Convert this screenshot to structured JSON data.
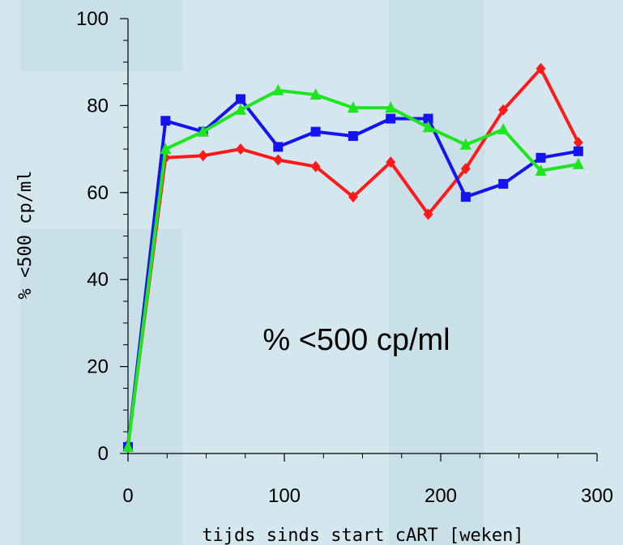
{
  "chart_data": {
    "type": "line",
    "title": "",
    "xlabel": "tijds sinds start cART [weken]",
    "ylabel": "% <500 cp/ml",
    "annotation": "% <500 cp/ml",
    "xlim": [
      0,
      300
    ],
    "ylim": [
      0,
      100
    ],
    "x_ticks": [
      0,
      100,
      200,
      300
    ],
    "y_ticks": [
      0,
      20,
      40,
      60,
      80,
      100
    ],
    "grid": false,
    "legend": "none",
    "series": [
      {
        "color": "#ff1a1a",
        "marker": "diamond",
        "x": [
          0,
          24,
          48,
          72,
          96,
          120,
          144,
          168,
          192,
          216,
          240,
          264,
          288
        ],
        "y": [
          2,
          68,
          68.5,
          70,
          67.5,
          66,
          59,
          67,
          55,
          65.5,
          79,
          88.5,
          71.5
        ]
      },
      {
        "color": "#1414f0",
        "marker": "square",
        "x": [
          0,
          24,
          48,
          72,
          96,
          120,
          144,
          168,
          192,
          216,
          240,
          264,
          288
        ],
        "y": [
          1.5,
          76.5,
          74,
          81.5,
          70.5,
          74,
          73,
          77,
          77,
          59,
          62,
          68,
          69.5
        ]
      },
      {
        "color": "#1ee61e",
        "marker": "triangle",
        "x": [
          0,
          24,
          48,
          72,
          96,
          120,
          144,
          168,
          192,
          216,
          240,
          264,
          288
        ],
        "y": [
          1.5,
          70,
          74,
          79,
          83.5,
          82.5,
          79.5,
          79.5,
          75,
          71,
          74.5,
          65,
          66.5
        ]
      }
    ]
  }
}
